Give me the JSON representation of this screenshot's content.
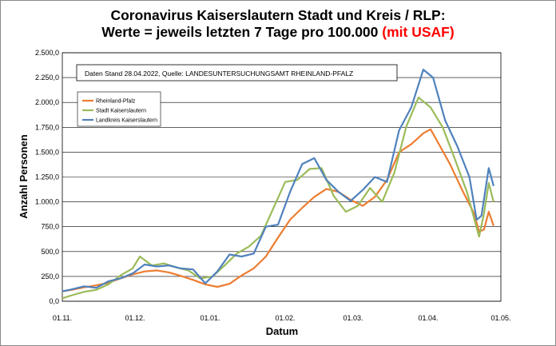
{
  "title": {
    "line1": "Coronavirus Kaiserslautern Stadt und Kreis / RLP:",
    "line2": "Werte = jeweils letzten 7 Tage pro 100.000",
    "line2_accent": "(mit USAF)"
  },
  "chart_data": {
    "type": "line",
    "title": "Coronavirus Kaiserslautern Stadt und Kreis / RLP: Werte = jeweils letzten 7 Tage pro 100.000 (mit USAF)",
    "xlabel": "Datum",
    "ylabel": "Anzahl Personen",
    "annotation": "Daten Stand 28.04.2022, Quelle: LANDESUNTERSUCHUNGSAMT RHEINLAND-PFALZ",
    "xlim": [
      "2021-11-01",
      "2022-05-01"
    ],
    "x_ticks": [
      "01.11.",
      "01.12.",
      "01.01.",
      "01.02.",
      "01.03.",
      "01.04.",
      "01.05."
    ],
    "x_tick_dates": [
      "2021-11-01",
      "2021-12-01",
      "2022-01-01",
      "2022-02-01",
      "2022-03-01",
      "2022-04-01",
      "2022-05-01"
    ],
    "ylim": [
      0,
      2500
    ],
    "y_ticks": [
      "0,0",
      "250,0",
      "500,0",
      "750,0",
      "1.000,0",
      "1.250,0",
      "1.500,0",
      "1.750,0",
      "2.000,0",
      "2.250,0",
      "2.500,0"
    ],
    "y_tick_values": [
      0,
      250,
      500,
      750,
      1000,
      1250,
      1500,
      1750,
      2000,
      2250,
      2500
    ],
    "grid": true,
    "legend_position": "upper-left",
    "series": [
      {
        "name": "Rheinland-Pfalz",
        "color": "#ed7d31",
        "points": [
          [
            "2021-11-01",
            100
          ],
          [
            "2021-11-05",
            115
          ],
          [
            "2021-11-10",
            140
          ],
          [
            "2021-11-15",
            160
          ],
          [
            "2021-11-20",
            185
          ],
          [
            "2021-11-25",
            230
          ],
          [
            "2021-11-30",
            270
          ],
          [
            "2021-12-05",
            300
          ],
          [
            "2021-12-10",
            310
          ],
          [
            "2021-12-15",
            290
          ],
          [
            "2021-12-20",
            255
          ],
          [
            "2021-12-25",
            215
          ],
          [
            "2021-12-30",
            170
          ],
          [
            "2022-01-04",
            145
          ],
          [
            "2022-01-09",
            175
          ],
          [
            "2022-01-14",
            260
          ],
          [
            "2022-01-19",
            330
          ],
          [
            "2022-01-24",
            450
          ],
          [
            "2022-01-29",
            640
          ],
          [
            "2022-02-03",
            820
          ],
          [
            "2022-02-08",
            940
          ],
          [
            "2022-02-13",
            1050
          ],
          [
            "2022-02-18",
            1130
          ],
          [
            "2022-02-23",
            1100
          ],
          [
            "2022-02-28",
            1020
          ],
          [
            "2022-03-05",
            960
          ],
          [
            "2022-03-10",
            1050
          ],
          [
            "2022-03-15",
            1220
          ],
          [
            "2022-03-20",
            1500
          ],
          [
            "2022-03-25",
            1580
          ],
          [
            "2022-03-30",
            1690
          ],
          [
            "2022-04-02",
            1730
          ],
          [
            "2022-04-05",
            1600
          ],
          [
            "2022-04-10",
            1380
          ],
          [
            "2022-04-15",
            1120
          ],
          [
            "2022-04-20",
            880
          ],
          [
            "2022-04-22",
            700
          ],
          [
            "2022-04-24",
            720
          ],
          [
            "2022-04-26",
            900
          ],
          [
            "2022-04-28",
            760
          ]
        ]
      },
      {
        "name": "Stadt Kaiserslautern",
        "color": "#9bbb59",
        "points": [
          [
            "2021-11-01",
            30
          ],
          [
            "2021-11-05",
            60
          ],
          [
            "2021-11-10",
            95
          ],
          [
            "2021-11-15",
            115
          ],
          [
            "2021-11-20",
            170
          ],
          [
            "2021-11-25",
            260
          ],
          [
            "2021-11-30",
            330
          ],
          [
            "2021-12-03",
            450
          ],
          [
            "2021-12-08",
            360
          ],
          [
            "2021-12-13",
            380
          ],
          [
            "2021-12-18",
            340
          ],
          [
            "2021-12-23",
            310
          ],
          [
            "2021-12-28",
            230
          ],
          [
            "2022-01-02",
            250
          ],
          [
            "2022-01-07",
            360
          ],
          [
            "2022-01-12",
            480
          ],
          [
            "2022-01-17",
            550
          ],
          [
            "2022-01-22",
            660
          ],
          [
            "2022-01-27",
            930
          ],
          [
            "2022-02-01",
            1200
          ],
          [
            "2022-02-06",
            1220
          ],
          [
            "2022-02-11",
            1330
          ],
          [
            "2022-02-16",
            1340
          ],
          [
            "2022-02-21",
            1060
          ],
          [
            "2022-02-26",
            900
          ],
          [
            "2022-03-03",
            960
          ],
          [
            "2022-03-08",
            1140
          ],
          [
            "2022-03-13",
            1000
          ],
          [
            "2022-03-18",
            1290
          ],
          [
            "2022-03-23",
            1760
          ],
          [
            "2022-03-28",
            2050
          ],
          [
            "2022-04-02",
            1950
          ],
          [
            "2022-04-07",
            1750
          ],
          [
            "2022-04-12",
            1430
          ],
          [
            "2022-04-17",
            1100
          ],
          [
            "2022-04-22",
            650
          ],
          [
            "2022-04-24",
            880
          ],
          [
            "2022-04-26",
            1190
          ],
          [
            "2022-04-28",
            1000
          ]
        ]
      },
      {
        "name": "Landkreis Kaiserslautern",
        "color": "#4f81bd",
        "points": [
          [
            "2021-11-01",
            100
          ],
          [
            "2021-11-05",
            120
          ],
          [
            "2021-11-10",
            150
          ],
          [
            "2021-11-15",
            135
          ],
          [
            "2021-11-20",
            200
          ],
          [
            "2021-11-25",
            230
          ],
          [
            "2021-11-30",
            280
          ],
          [
            "2021-12-05",
            370
          ],
          [
            "2021-12-10",
            350
          ],
          [
            "2021-12-15",
            360
          ],
          [
            "2021-12-20",
            330
          ],
          [
            "2021-12-25",
            320
          ],
          [
            "2021-12-30",
            180
          ],
          [
            "2022-01-04",
            300
          ],
          [
            "2022-01-09",
            470
          ],
          [
            "2022-01-14",
            450
          ],
          [
            "2022-01-19",
            480
          ],
          [
            "2022-01-24",
            750
          ],
          [
            "2022-01-29",
            770
          ],
          [
            "2022-02-03",
            1100
          ],
          [
            "2022-02-08",
            1380
          ],
          [
            "2022-02-13",
            1440
          ],
          [
            "2022-02-18",
            1220
          ],
          [
            "2022-02-23",
            1100
          ],
          [
            "2022-02-28",
            1010
          ],
          [
            "2022-03-05",
            1120
          ],
          [
            "2022-03-10",
            1250
          ],
          [
            "2022-03-15",
            1200
          ],
          [
            "2022-03-20",
            1720
          ],
          [
            "2022-03-25",
            1950
          ],
          [
            "2022-03-30",
            2330
          ],
          [
            "2022-04-03",
            2250
          ],
          [
            "2022-04-08",
            1820
          ],
          [
            "2022-04-13",
            1560
          ],
          [
            "2022-04-18",
            1250
          ],
          [
            "2022-04-21",
            820
          ],
          [
            "2022-04-23",
            860
          ],
          [
            "2022-04-26",
            1340
          ],
          [
            "2022-04-28",
            1160
          ]
        ]
      }
    ]
  }
}
